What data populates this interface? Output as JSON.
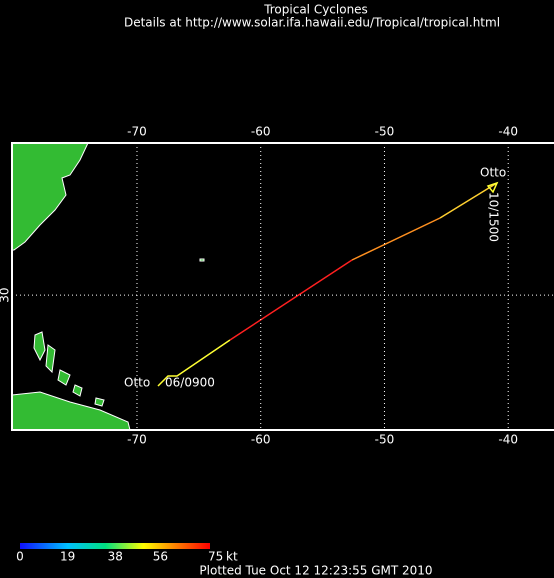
{
  "title": "Tropical Cyclones",
  "subtitle": "Details at http://www.solar.ifa.hawaii.edu/Tropical/tropical.html",
  "map": {
    "xlim": [
      -80.1,
      -36.3
    ],
    "ylim": [
      20.6,
      40.6
    ],
    "xticks": [
      -70,
      -60,
      -50,
      -40
    ],
    "yticks": [
      30
    ],
    "grid": true
  },
  "track": {
    "start_name": "Otto",
    "start_time": "06/0900",
    "end_name": "Otto",
    "end_time": "10/1500"
  },
  "colorbar": {
    "ticks": [
      0,
      19,
      38,
      56,
      75
    ],
    "unit": "kt",
    "lim": [
      0,
      75
    ]
  },
  "footer": "Plotted Tue Oct 12 12:23:55 GMT 2010"
}
